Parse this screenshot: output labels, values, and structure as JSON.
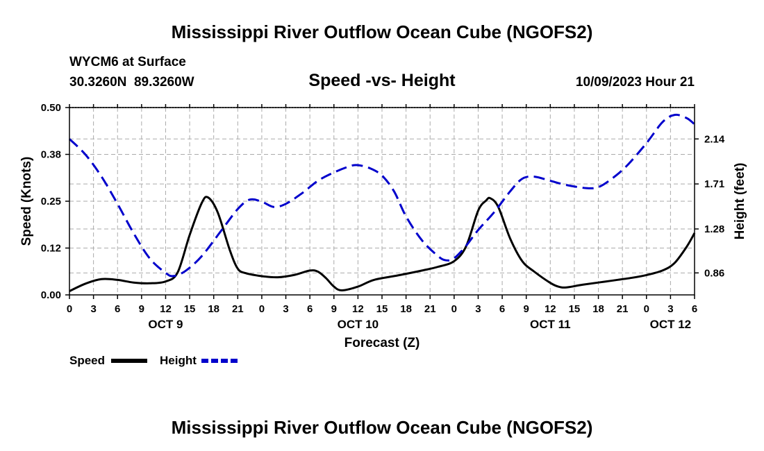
{
  "chart_data": {
    "type": "line",
    "title": "Mississippi River Outflow Ocean Cube (NGOFS2)",
    "footer_title": "Mississippi River Outflow Ocean Cube (NGOFS2)",
    "station": "WYCM6 at Surface",
    "coords": "30.3260N  89.3260W",
    "subtitle": "Speed -vs- Height",
    "timestamp": "10/09/2023 Hour 21",
    "xlabel": "Forecast (Z)",
    "ylabel_left": "Speed (Knots)",
    "ylabel_right": "Height (feet)",
    "x_range_hours": [
      0,
      78
    ],
    "ylim_left": [
      0,
      0.5
    ],
    "ylim_right": [
      0.65,
      2.44
    ],
    "x_ticks": [
      {
        "h": 0,
        "label": "0"
      },
      {
        "h": 3,
        "label": "3"
      },
      {
        "h": 6,
        "label": "6"
      },
      {
        "h": 9,
        "label": "9"
      },
      {
        "h": 12,
        "label": "12"
      },
      {
        "h": 15,
        "label": "15"
      },
      {
        "h": 18,
        "label": "18"
      },
      {
        "h": 21,
        "label": "21"
      },
      {
        "h": 24,
        "label": "0"
      },
      {
        "h": 27,
        "label": "3"
      },
      {
        "h": 30,
        "label": "6"
      },
      {
        "h": 33,
        "label": "9"
      },
      {
        "h": 36,
        "label": "12"
      },
      {
        "h": 39,
        "label": "15"
      },
      {
        "h": 42,
        "label": "18"
      },
      {
        "h": 45,
        "label": "21"
      },
      {
        "h": 48,
        "label": "0"
      },
      {
        "h": 51,
        "label": "3"
      },
      {
        "h": 54,
        "label": "6"
      },
      {
        "h": 57,
        "label": "9"
      },
      {
        "h": 60,
        "label": "12"
      },
      {
        "h": 63,
        "label": "15"
      },
      {
        "h": 66,
        "label": "18"
      },
      {
        "h": 69,
        "label": "21"
      },
      {
        "h": 72,
        "label": "0"
      },
      {
        "h": 75,
        "label": "3"
      },
      {
        "h": 78,
        "label": "6"
      }
    ],
    "day_labels": [
      {
        "h": 12,
        "label": "OCT 9"
      },
      {
        "h": 36,
        "label": "OCT 10"
      },
      {
        "h": 60,
        "label": "OCT 11"
      },
      {
        "h": 75,
        "label": "OCT 12"
      }
    ],
    "y_ticks_left": [
      {
        "v": 0.0,
        "label": "0.00"
      },
      {
        "v": 0.125,
        "label": "0.12"
      },
      {
        "v": 0.25,
        "label": "0.25"
      },
      {
        "v": 0.375,
        "label": "0.38"
      },
      {
        "v": 0.5,
        "label": "0.50"
      }
    ],
    "y_ticks_right": [
      {
        "v": 0.86,
        "label": "0.86"
      },
      {
        "v": 1.28,
        "label": "1.28"
      },
      {
        "v": 1.71,
        "label": "1.71"
      },
      {
        "v": 2.14,
        "label": "2.14"
      }
    ],
    "series": [
      {
        "name": "Speed",
        "legend": "Speed",
        "axis": "left",
        "color": "#000000",
        "dash": "solid",
        "points": [
          [
            0,
            0.01
          ],
          [
            2,
            0.03
          ],
          [
            4,
            0.042
          ],
          [
            6,
            0.04
          ],
          [
            8,
            0.033
          ],
          [
            10,
            0.031
          ],
          [
            12,
            0.036
          ],
          [
            13.5,
            0.06
          ],
          [
            15,
            0.16
          ],
          [
            16.5,
            0.245
          ],
          [
            17.3,
            0.26
          ],
          [
            18.5,
            0.22
          ],
          [
            20,
            0.12
          ],
          [
            21,
            0.07
          ],
          [
            22,
            0.058
          ],
          [
            24,
            0.05
          ],
          [
            26,
            0.047
          ],
          [
            28,
            0.053
          ],
          [
            30,
            0.065
          ],
          [
            31,
            0.062
          ],
          [
            32,
            0.045
          ],
          [
            33,
            0.022
          ],
          [
            34,
            0.012
          ],
          [
            36,
            0.022
          ],
          [
            38,
            0.04
          ],
          [
            41,
            0.052
          ],
          [
            44,
            0.065
          ],
          [
            46,
            0.075
          ],
          [
            48,
            0.09
          ],
          [
            49.5,
            0.13
          ],
          [
            51,
            0.225
          ],
          [
            52,
            0.252
          ],
          [
            52.5,
            0.258
          ],
          [
            53.5,
            0.235
          ],
          [
            55,
            0.15
          ],
          [
            56.5,
            0.09
          ],
          [
            58,
            0.062
          ],
          [
            60,
            0.032
          ],
          [
            61,
            0.022
          ],
          [
            62,
            0.02
          ],
          [
            64,
            0.027
          ],
          [
            67,
            0.036
          ],
          [
            70,
            0.045
          ],
          [
            72,
            0.053
          ],
          [
            74,
            0.065
          ],
          [
            75.5,
            0.085
          ],
          [
            77,
            0.128
          ],
          [
            78,
            0.165
          ]
        ]
      },
      {
        "name": "Height",
        "legend": "Height",
        "axis": "right",
        "color": "#0000cc",
        "dash": "dashed",
        "points": [
          [
            0,
            2.14
          ],
          [
            2,
            1.99
          ],
          [
            4,
            1.78
          ],
          [
            6,
            1.52
          ],
          [
            8,
            1.24
          ],
          [
            10,
            1.0
          ],
          [
            12,
            0.86
          ],
          [
            13,
            0.83
          ],
          [
            14.5,
            0.88
          ],
          [
            16.5,
            1.02
          ],
          [
            19,
            1.27
          ],
          [
            21,
            1.47
          ],
          [
            22.5,
            1.56
          ],
          [
            24,
            1.54
          ],
          [
            25.5,
            1.49
          ],
          [
            27,
            1.52
          ],
          [
            29,
            1.62
          ],
          [
            31,
            1.74
          ],
          [
            33,
            1.82
          ],
          [
            35,
            1.88
          ],
          [
            36,
            1.89
          ],
          [
            37.5,
            1.86
          ],
          [
            39,
            1.79
          ],
          [
            40.5,
            1.64
          ],
          [
            42,
            1.4
          ],
          [
            44,
            1.17
          ],
          [
            46,
            1.02
          ],
          [
            47,
            0.98
          ],
          [
            48,
            1.0
          ],
          [
            49.5,
            1.12
          ],
          [
            51,
            1.27
          ],
          [
            53,
            1.44
          ],
          [
            55,
            1.64
          ],
          [
            56.5,
            1.76
          ],
          [
            58,
            1.78
          ],
          [
            60,
            1.74
          ],
          [
            62,
            1.7
          ],
          [
            64.5,
            1.67
          ],
          [
            66,
            1.68
          ],
          [
            67.5,
            1.75
          ],
          [
            69.5,
            1.88
          ],
          [
            72,
            2.1
          ],
          [
            74,
            2.3
          ],
          [
            75.5,
            2.37
          ],
          [
            77,
            2.34
          ],
          [
            78,
            2.28
          ]
        ]
      }
    ]
  }
}
